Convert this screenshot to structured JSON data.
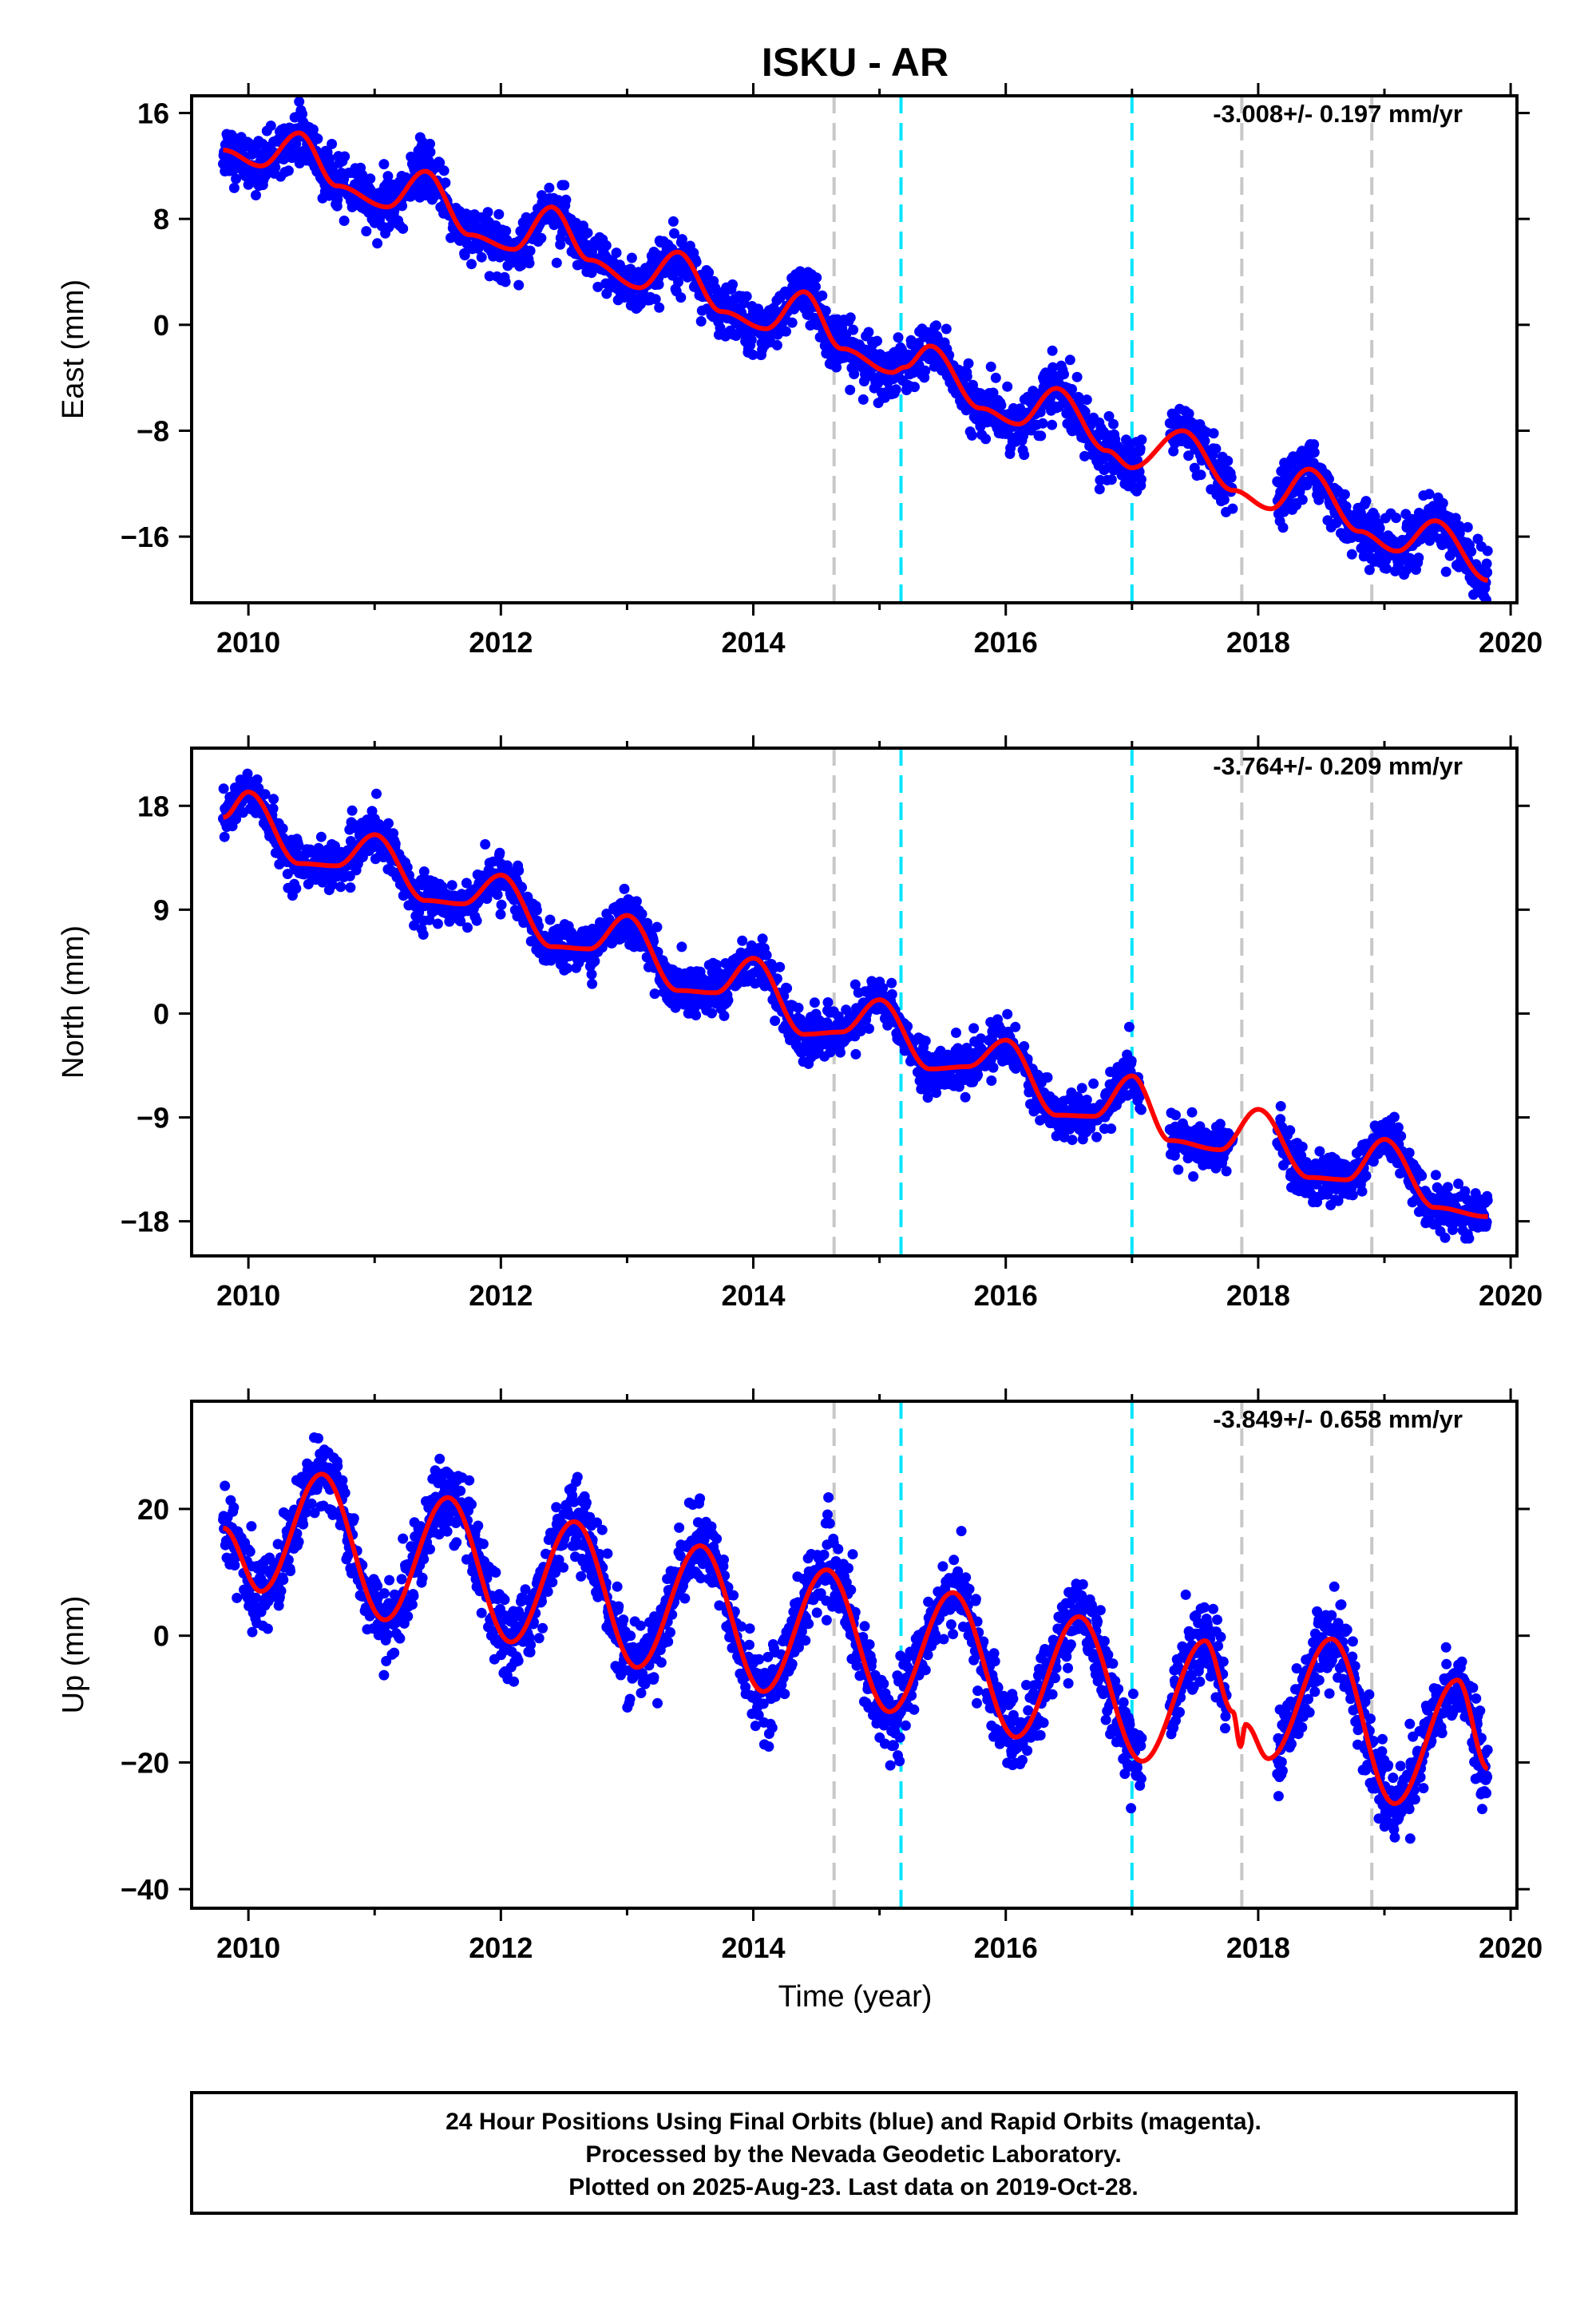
{
  "colors": {
    "final_orbits": "#0000ff",
    "model_fit": "#ff0000",
    "event_gray": "#c8c8c8",
    "event_cyan": "#00e5ff",
    "frame": "#000000"
  },
  "chart_data": {
    "type": "scatter",
    "title": "ISKU - AR",
    "xlabel": "Time (year)",
    "xlim": [
      2009.55,
      2020.05
    ],
    "x_ticks": [
      2010,
      2012,
      2014,
      2016,
      2018,
      2020
    ],
    "x_tick_labels": [
      "2010",
      "2012",
      "2014",
      "2016",
      "2018",
      "2020"
    ],
    "data_start": 2009.8,
    "data_end": 2019.82,
    "vertical_lines": [
      {
        "x": 2014.64,
        "color": "gray"
      },
      {
        "x": 2015.17,
        "color": "cyan"
      },
      {
        "x": 2017.0,
        "color": "cyan"
      },
      {
        "x": 2017.87,
        "color": "gray"
      },
      {
        "x": 2018.9,
        "color": "gray"
      }
    ],
    "panels": [
      {
        "name": "east",
        "ylabel": "East (mm)",
        "ylim": [
          -21,
          17.3
        ],
        "y_ticks": [
          16,
          8,
          0,
          -8,
          -16
        ],
        "y_tick_labels": [
          "16",
          "8",
          "0",
          "−8",
          "−16"
        ],
        "rate_label": "-3.008+/- 0.197 mm/yr",
        "scatter_noise_mm": 1.0,
        "model_fit": [
          [
            2009.8,
            13.2
          ],
          [
            2010.1,
            12.0
          ],
          [
            2010.4,
            14.5
          ],
          [
            2010.7,
            10.5
          ],
          [
            2011.1,
            8.9
          ],
          [
            2011.4,
            11.6
          ],
          [
            2011.75,
            6.8
          ],
          [
            2012.1,
            5.7
          ],
          [
            2012.4,
            8.9
          ],
          [
            2012.7,
            4.9
          ],
          [
            2013.1,
            2.8
          ],
          [
            2013.4,
            5.5
          ],
          [
            2013.75,
            1.0
          ],
          [
            2014.1,
            -0.3
          ],
          [
            2014.4,
            2.5
          ],
          [
            2014.7,
            -1.8
          ],
          [
            2015.1,
            -3.6
          ],
          [
            2015.2,
            -3.2
          ],
          [
            2015.4,
            -1.6
          ],
          [
            2015.8,
            -6.3
          ],
          [
            2016.1,
            -7.5
          ],
          [
            2016.4,
            -4.8
          ],
          [
            2016.8,
            -9.5
          ],
          [
            2017.0,
            -10.8
          ],
          [
            2017.4,
            -8.0
          ],
          [
            2017.8,
            -12.5
          ],
          [
            2018.1,
            -13.9
          ],
          [
            2018.4,
            -10.9
          ],
          [
            2018.8,
            -15.6
          ],
          [
            2019.1,
            -17.1
          ],
          [
            2019.4,
            -14.8
          ],
          [
            2019.82,
            -19.3
          ]
        ],
        "data_segments": [
          [
            2009.8,
            2017.08
          ],
          [
            2017.3,
            2017.8
          ],
          [
            2018.15,
            2019.82
          ]
        ]
      },
      {
        "name": "north",
        "ylabel": "North (mm)",
        "ylim": [
          -21,
          23
        ],
        "y_ticks": [
          18,
          9,
          0,
          -9,
          -18
        ],
        "y_tick_labels": [
          "18",
          "9",
          "0",
          "−9",
          "−18"
        ],
        "rate_label": "-3.764+/- 0.209 mm/yr",
        "scatter_noise_mm": 1.0,
        "model_fit": [
          [
            2009.8,
            17.0
          ],
          [
            2010.0,
            19.2
          ],
          [
            2010.4,
            13.0
          ],
          [
            2010.7,
            12.8
          ],
          [
            2011.0,
            15.5
          ],
          [
            2011.4,
            9.8
          ],
          [
            2011.7,
            9.5
          ],
          [
            2012.0,
            12.0
          ],
          [
            2012.4,
            5.8
          ],
          [
            2012.7,
            5.6
          ],
          [
            2013.0,
            8.5
          ],
          [
            2013.4,
            2.0
          ],
          [
            2013.7,
            1.8
          ],
          [
            2014.0,
            4.8
          ],
          [
            2014.4,
            -1.8
          ],
          [
            2014.7,
            -1.6
          ],
          [
            2015.0,
            1.2
          ],
          [
            2015.4,
            -4.8
          ],
          [
            2015.7,
            -4.6
          ],
          [
            2016.0,
            -2.3
          ],
          [
            2016.4,
            -8.8
          ],
          [
            2016.7,
            -8.9
          ],
          [
            2017.0,
            -5.4
          ],
          [
            2017.3,
            -11.0
          ],
          [
            2017.7,
            -11.8
          ],
          [
            2018.0,
            -8.3
          ],
          [
            2018.4,
            -14.2
          ],
          [
            2018.7,
            -14.4
          ],
          [
            2019.0,
            -10.9
          ],
          [
            2019.4,
            -16.8
          ],
          [
            2019.82,
            -17.6
          ]
        ],
        "data_segments": [
          [
            2009.8,
            2017.08
          ],
          [
            2017.3,
            2017.8
          ],
          [
            2018.15,
            2019.82
          ]
        ]
      },
      {
        "name": "up",
        "ylabel": "Up (mm)",
        "ylim": [
          -43,
          37
        ],
        "y_ticks": [
          20,
          0,
          -20,
          -40
        ],
        "y_tick_labels": [
          "20",
          "0",
          "−20",
          "−40"
        ],
        "rate_label": "-3.849+/- 0.658 mm/yr",
        "scatter_noise_mm": 3.0,
        "model_fit": [
          [
            2009.8,
            17.0
          ],
          [
            2010.1,
            7.0
          ],
          [
            2010.58,
            25.5
          ],
          [
            2011.08,
            2.5
          ],
          [
            2011.58,
            21.8
          ],
          [
            2012.08,
            -1.0
          ],
          [
            2012.58,
            18.0
          ],
          [
            2013.08,
            -5.0
          ],
          [
            2013.58,
            14.2
          ],
          [
            2014.08,
            -8.8
          ],
          [
            2014.58,
            10.4
          ],
          [
            2015.08,
            -12.0
          ],
          [
            2015.58,
            6.8
          ],
          [
            2016.08,
            -16.0
          ],
          [
            2016.58,
            3.0
          ],
          [
            2017.08,
            -19.8
          ],
          [
            2017.58,
            -0.8
          ],
          [
            2017.8,
            -12.0
          ],
          [
            2017.86,
            -17.5
          ],
          [
            2017.9,
            -14.0
          ],
          [
            2018.08,
            -19.4
          ],
          [
            2018.58,
            -0.5
          ],
          [
            2019.08,
            -26.5
          ],
          [
            2019.58,
            -7.0
          ],
          [
            2019.82,
            -21.0
          ]
        ],
        "data_segments": [
          [
            2009.8,
            2017.08
          ],
          [
            2017.3,
            2017.75
          ],
          [
            2018.15,
            2019.82
          ]
        ]
      }
    ]
  },
  "footer": {
    "line1": "24 Hour Positions Using Final Orbits (blue) and Rapid Orbits (magenta).",
    "line2": "Processed by the Nevada Geodetic Laboratory.",
    "line3": "Plotted on 2025-Aug-23. Last data on 2019-Oct-28."
  }
}
